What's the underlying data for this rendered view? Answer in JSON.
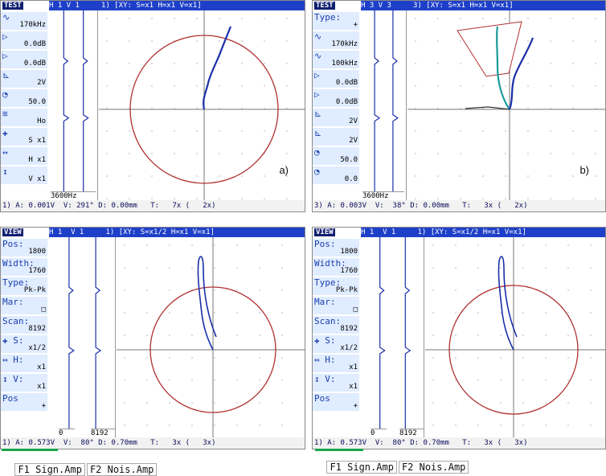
{
  "panels": [
    {
      "id": "a",
      "header": "H 1 V 1     1) [XY: S=x1 H=x1 V=x1]",
      "mode_label": "TEST",
      "sidebar": [
        {
          "icon": "wave-icon",
          "glyph": "∿",
          "value": "170kHz"
        },
        {
          "icon": "gain-icon",
          "glyph": "▷",
          "value": "0.0dB"
        },
        {
          "icon": "gain-icon",
          "glyph": "▷",
          "value": "0.0dB"
        },
        {
          "icon": "drive-icon",
          "glyph": "⊾",
          "value": "2V"
        },
        {
          "icon": "phase-icon",
          "glyph": "◔",
          "value": "50.0"
        },
        {
          "icon": "filter-icon",
          "glyph": "≋",
          "value": "Ho"
        },
        {
          "icon": "move-icon",
          "glyph": "✚",
          "value": "S x1"
        },
        {
          "icon": "horizontal-icon",
          "glyph": "↔",
          "value": "H x1"
        },
        {
          "icon": "vertical-icon",
          "glyph": "↕",
          "value": "V x1"
        }
      ],
      "strip_label": "3600Hz",
      "status": "1) A: 0.001V  V: 291° D: 0.00mm   T:   7x (   2x)",
      "sublabel": "a)"
    },
    {
      "id": "b",
      "header": "H 3 V 3     3) [XY: S=x1 H=x1 V=x1]",
      "mode_label": "TEST",
      "sidebar": [
        {
          "icon": "type-icon",
          "glyph": "Type:",
          "value": "+"
        },
        {
          "icon": "wave-icon",
          "glyph": "∿",
          "value": "170kHz"
        },
        {
          "icon": "wave-icon",
          "glyph": "∿",
          "value": "100kHz"
        },
        {
          "icon": "gain-icon",
          "glyph": "▷",
          "value": "0.0dB"
        },
        {
          "icon": "gain-icon",
          "glyph": "▷",
          "value": "0.0dB"
        },
        {
          "icon": "drive-icon",
          "glyph": "⊾",
          "value": "2V"
        },
        {
          "icon": "drive-icon",
          "glyph": "⊾",
          "value": "2V"
        },
        {
          "icon": "phase-icon",
          "glyph": "◔",
          "value": "50.0"
        },
        {
          "icon": "phase-icon",
          "glyph": "◔",
          "value": "0.0"
        }
      ],
      "strip_label": "3600Hz",
      "status": "3) A: 0.003V  V:  38° D: 0.00mm   T:   3x (   2x)",
      "sublabel": "b)"
    },
    {
      "id": "c",
      "header": "H 1  V 1     1) [XY: S=x1/2 H=x1 V=x1]",
      "mode_label": "VIEW",
      "sidebar": [
        {
          "icon": "pos-icon",
          "glyph": "Pos:",
          "value": "1800"
        },
        {
          "icon": "width-icon",
          "glyph": "Width:",
          "value": "1760"
        },
        {
          "icon": "type-icon",
          "glyph": "Type:",
          "value": "Pk-Pk"
        },
        {
          "icon": "marker-icon",
          "glyph": "Mar:",
          "value": "□"
        },
        {
          "icon": "scan-icon",
          "glyph": "Scan:",
          "value": "8192"
        },
        {
          "icon": "move-icon",
          "glyph": "✚ S:",
          "value": "x1/2"
        },
        {
          "icon": "horizontal-icon",
          "glyph": "↔ H:",
          "value": "x1"
        },
        {
          "icon": "vertical-icon",
          "glyph": "↕ V:",
          "value": "x1"
        },
        {
          "icon": "cross-icon",
          "glyph": "Pos",
          "value": "+"
        }
      ],
      "strip_label_left": "0",
      "strip_label_right": "8192",
      "status": "1) A: 0.573V  V:  80° D: 0.70mm   T:   3x (   3x)",
      "fkeys": [
        "F1 Sign.Amp",
        "F2 Nois.Amp"
      ]
    },
    {
      "id": "d",
      "header": "H 1  V 1     1) [XY: S=x1/2 H=x1 V=x1]",
      "mode_label": "VIEW",
      "sidebar": [
        {
          "icon": "pos-icon",
          "glyph": "Pos:",
          "value": "1800"
        },
        {
          "icon": "width-icon",
          "glyph": "Width:",
          "value": "1760"
        },
        {
          "icon": "type-icon",
          "glyph": "Type:",
          "value": "Pk-Pk"
        },
        {
          "icon": "marker-icon",
          "glyph": "Mar:",
          "value": "□"
        },
        {
          "icon": "scan-icon",
          "glyph": "Scan:",
          "value": "8192"
        },
        {
          "icon": "move-icon",
          "glyph": "✚ S:",
          "value": "x1/2"
        },
        {
          "icon": "horizontal-icon",
          "glyph": "↔ H:",
          "value": "x1"
        },
        {
          "icon": "vertical-icon",
          "glyph": "↕ V:",
          "value": "x1"
        },
        {
          "icon": "cross-icon",
          "glyph": "Pos",
          "value": "+"
        }
      ],
      "strip_label_left": "0",
      "strip_label_right": "8192",
      "status": "1) A: 0.573V  V:  80° D: 0.70mm   T:   3x (   3x)",
      "fkeys": [
        "F1 Sign.Amp",
        "F2 Nois.Amp"
      ]
    }
  ],
  "colors": {
    "header": "#1e40c8",
    "circle": "#b03030",
    "trace": "#1a2fa8",
    "trace_teal": "#1a9a9a",
    "grid_dot": "#b0b0b0"
  }
}
